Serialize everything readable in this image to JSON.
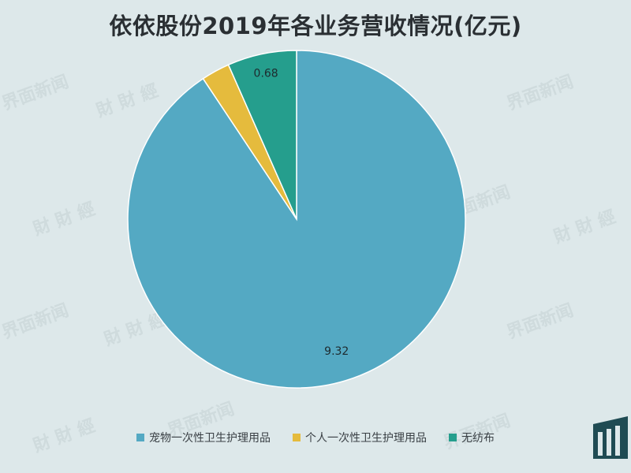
{
  "chart_data": {
    "type": "pie",
    "title": "依依股份2019年各业务营收情况(亿元)",
    "categories": [
      "宠物一次性卫生护理用品",
      "个人一次性卫生护理用品",
      "无纺布"
    ],
    "values": [
      9.32,
      0.28,
      0.68
    ],
    "data_labels": [
      "9.32",
      "",
      "0.68"
    ],
    "colors": [
      "#54a9c3",
      "#e5bb3d",
      "#259e8d"
    ],
    "start_angle_deg": 0,
    "direction": "clockwise",
    "legend_position": "bottom"
  },
  "colors": {
    "background": "#dde8ea",
    "slice_border": "#ffffff"
  },
  "watermark": {
    "text_a": "界面新闻",
    "text_b": "財 財 經"
  }
}
